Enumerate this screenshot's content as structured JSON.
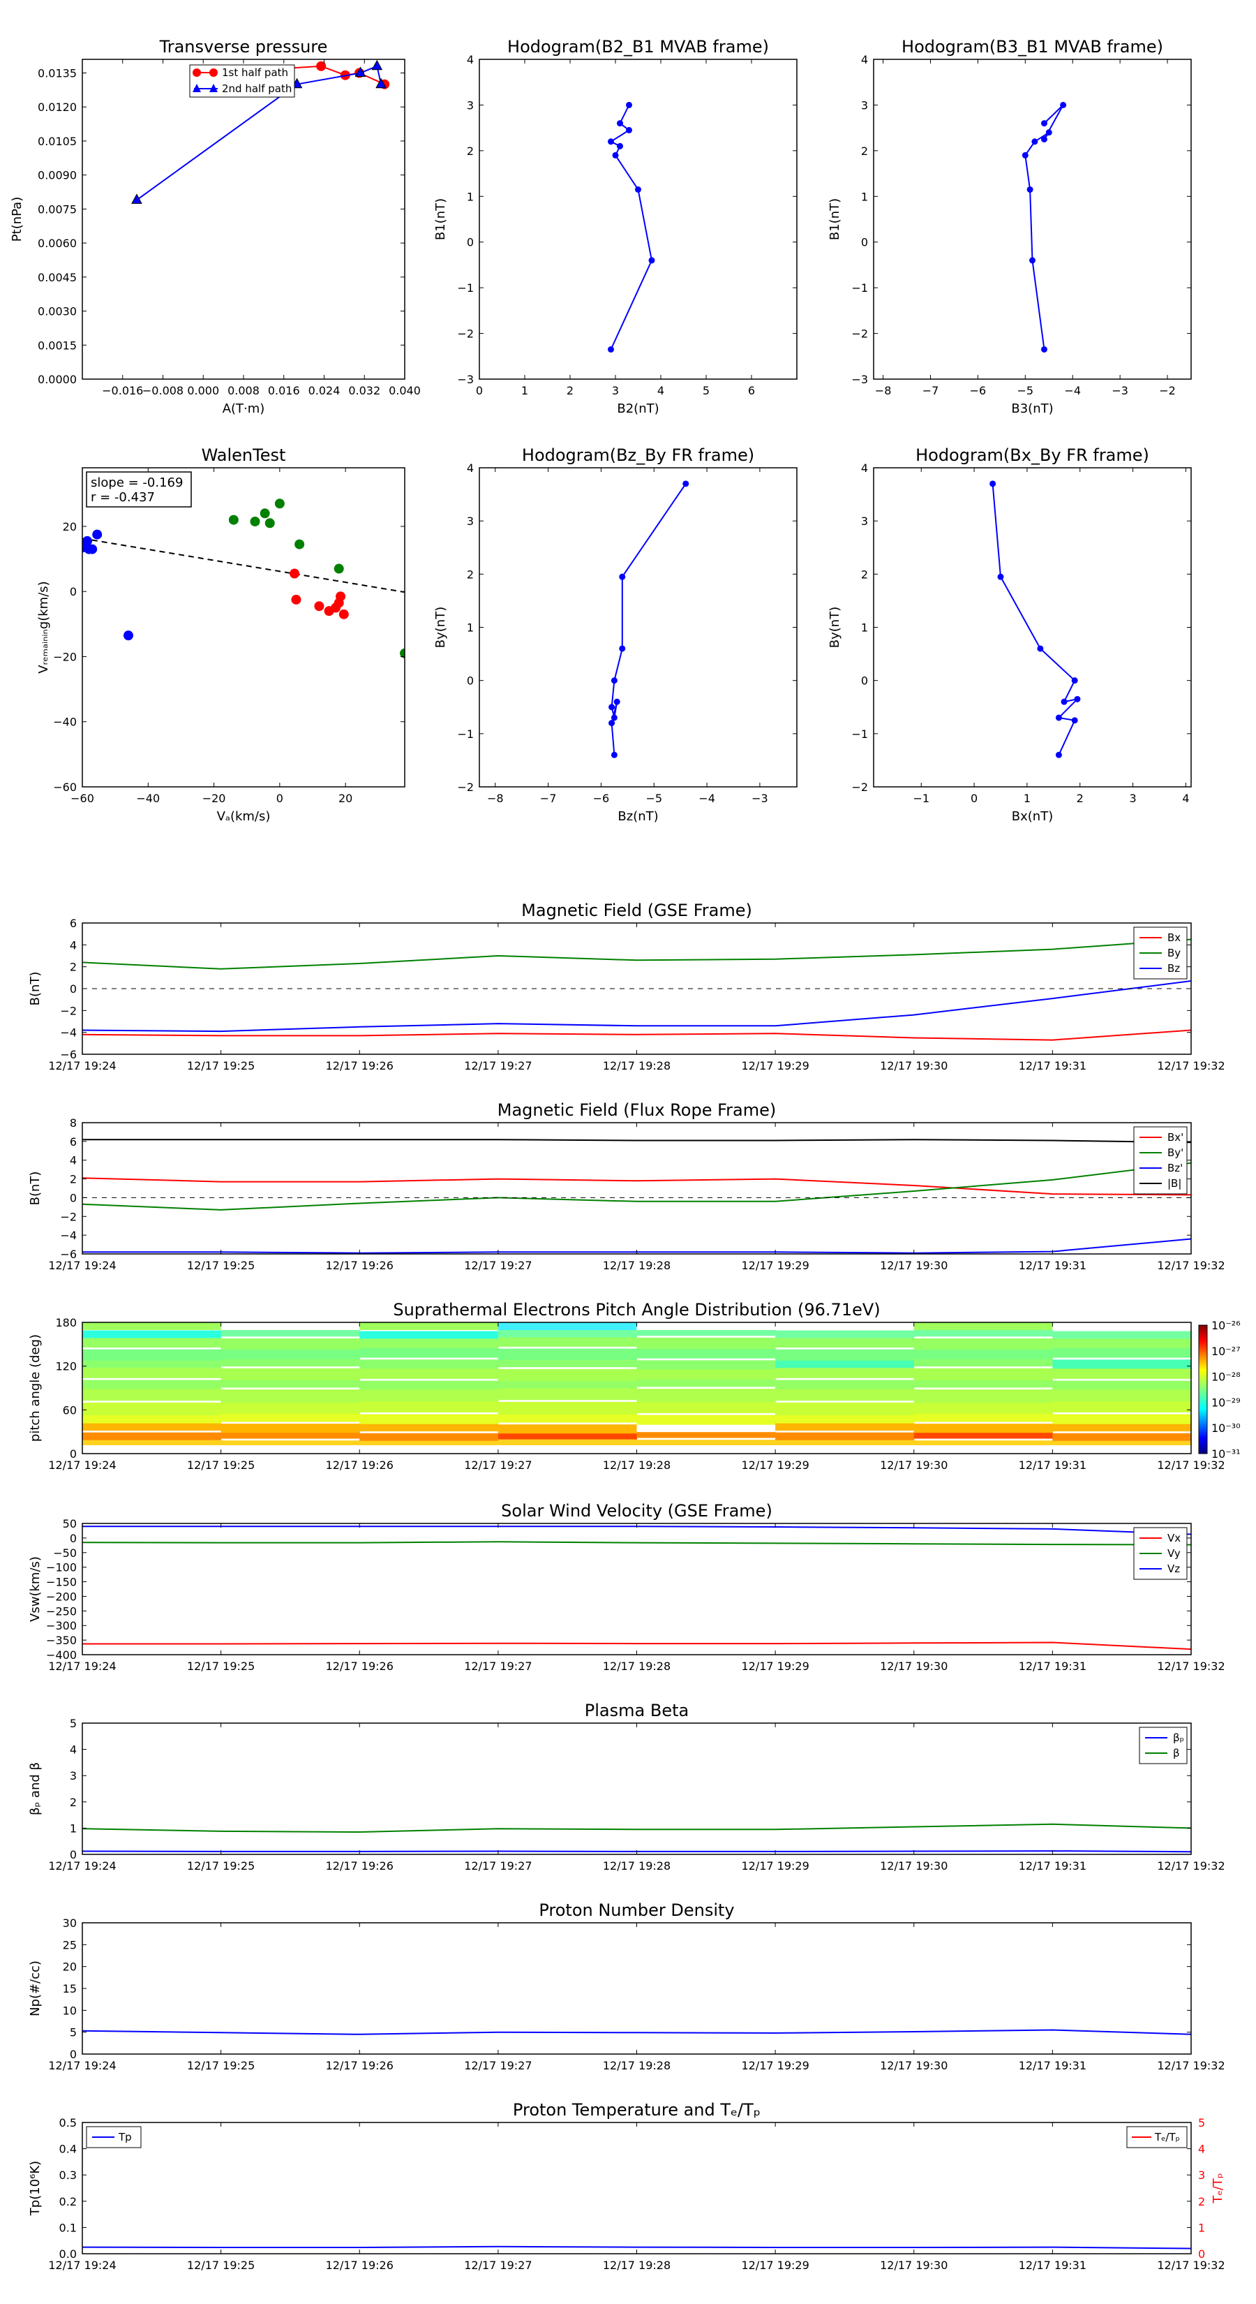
{
  "panels": {
    "transverse": {
      "title": "Transverse pressure",
      "xlabel": "A(T·m)",
      "ylabel": "Pt(nPa)",
      "xlim": [
        -0.024,
        0.04
      ],
      "ylim": [
        0,
        0.0141
      ],
      "xticks": [
        -0.016,
        -0.008,
        0.0,
        0.008,
        0.016,
        0.024,
        0.032,
        0.04
      ],
      "xticklabels": [
        "−0.016",
        "−0.008",
        "0.000",
        "0.008",
        "0.016",
        "0.024",
        "0.032",
        "0.040"
      ],
      "yticks": [
        0,
        0.0015,
        0.003,
        0.0045,
        0.006,
        0.0075,
        0.009,
        0.0105,
        0.012,
        0.0135
      ],
      "yticklabels": [
        "0.0000",
        "0.0015",
        "0.0030",
        "0.0045",
        "0.0060",
        "0.0075",
        "0.0090",
        "0.0105",
        "0.0120",
        "0.0135"
      ],
      "legend": [
        "1st half path",
        "2nd half path"
      ]
    },
    "hodo_b2b1": {
      "title": "Hodogram(B2_B1 MVAB frame)",
      "xlabel": "B2(nT)",
      "ylabel": "B1(nT)",
      "xlim": [
        0,
        7
      ],
      "ylim": [
        -3,
        4
      ],
      "xticks": [
        0,
        1,
        2,
        3,
        4,
        5,
        6
      ],
      "xticklabels": [
        "0",
        "1",
        "2",
        "3",
        "4",
        "5",
        "6"
      ],
      "yticks": [
        -3,
        -2,
        -1,
        0,
        1,
        2,
        3,
        4
      ],
      "yticklabels": [
        "−3",
        "−2",
        "−1",
        "0",
        "1",
        "2",
        "3",
        "4"
      ]
    },
    "hodo_b3b1": {
      "title": "Hodogram(B3_B1 MVAB frame)",
      "xlabel": "B3(nT)",
      "ylabel": "B1(nT)",
      "xlim": [
        -8.2,
        -1.5
      ],
      "ylim": [
        -3,
        4
      ],
      "xticks": [
        -8,
        -7,
        -6,
        -5,
        -4,
        -3,
        -2
      ],
      "xticklabels": [
        "−8",
        "−7",
        "−6",
        "−5",
        "−4",
        "−3",
        "−2"
      ],
      "yticks": [
        -3,
        -2,
        -1,
        0,
        1,
        2,
        3,
        4
      ],
      "yticklabels": [
        "−3",
        "−2",
        "−1",
        "0",
        "1",
        "2",
        "3",
        "4"
      ]
    },
    "walen": {
      "title": "WalenTest",
      "xlabel": "Vₐ(km/s)",
      "ylabel": "Vᵣₑₘₐᵢₙᵢₙg(km/s)",
      "xlim": [
        -60,
        38
      ],
      "ylim": [
        -60,
        38
      ],
      "xticks": [
        -60,
        -40,
        -20,
        0,
        20
      ],
      "xticklabels": [
        "−60",
        "−40",
        "−20",
        "0",
        "20"
      ],
      "yticks": [
        -60,
        -40,
        -20,
        0,
        20
      ],
      "yticklabels": [
        "−60",
        "−40",
        "−20",
        "0",
        "20"
      ],
      "box": [
        "slope = -0.169",
        "r = -0.437"
      ]
    },
    "hodo_bzby": {
      "title": "Hodogram(Bz_By FR frame)",
      "xlabel": "Bz(nT)",
      "ylabel": "By(nT)",
      "xlim": [
        -8.3,
        -2.3
      ],
      "ylim": [
        -2,
        4
      ],
      "xticks": [
        -8,
        -7,
        -6,
        -5,
        -4,
        -3
      ],
      "xticklabels": [
        "−8",
        "−7",
        "−6",
        "−5",
        "−4",
        "−3"
      ],
      "yticks": [
        -2,
        -1,
        0,
        1,
        2,
        3,
        4
      ],
      "yticklabels": [
        "−2",
        "−1",
        "0",
        "1",
        "2",
        "3",
        "4"
      ]
    },
    "hodo_bxby": {
      "title": "Hodogram(Bx_By FR frame)",
      "xlabel": "Bx(nT)",
      "ylabel": "By(nT)",
      "xlim": [
        -1.9,
        4.1
      ],
      "ylim": [
        -2,
        4
      ],
      "xticks": [
        -1,
        0,
        1,
        2,
        3,
        4
      ],
      "xticklabels": [
        "−1",
        "0",
        "1",
        "2",
        "3",
        "4"
      ],
      "yticks": [
        -2,
        -1,
        0,
        1,
        2,
        3,
        4
      ],
      "yticklabels": [
        "−2",
        "−1",
        "0",
        "1",
        "2",
        "3",
        "4"
      ]
    },
    "mag_gse": {
      "title": "Magnetic Field (GSE Frame)",
      "ylabel": "B(nT)",
      "ylim": [
        -6,
        6
      ],
      "yticks": [
        -6,
        -4,
        -2,
        0,
        2,
        4,
        6
      ],
      "yticklabels": [
        "−6",
        "−4",
        "−2",
        "0",
        "2",
        "4",
        "6"
      ],
      "legend": [
        "Bx",
        "By",
        "Bz"
      ]
    },
    "mag_fr": {
      "title": "Magnetic Field (Flux Rope Frame)",
      "ylabel": "B(nT)",
      "ylim": [
        -6,
        8
      ],
      "yticks": [
        -6,
        -4,
        -2,
        0,
        2,
        4,
        6,
        8
      ],
      "yticklabels": [
        "−6",
        "−4",
        "−2",
        "0",
        "2",
        "4",
        "6",
        "8"
      ],
      "legend": [
        "Bx'",
        "By'",
        "Bz'",
        "|B|"
      ]
    },
    "pitch": {
      "title": "Suprathermal Electrons Pitch Angle Distribution (96.71eV)",
      "ylabel": "pitch angle (deg)",
      "ylim": [
        0,
        180
      ],
      "yticks": [
        0,
        60,
        120,
        180
      ],
      "yticklabels": [
        "0",
        "60",
        "120",
        "180"
      ],
      "cbar_ticklabels": [
        "10⁻²⁶",
        "10⁻²⁷",
        "10⁻²⁸",
        "10⁻²⁹",
        "10⁻³⁰",
        "10⁻³¹"
      ]
    },
    "vsw": {
      "title": "Solar Wind Velocity (GSE Frame)",
      "ylabel": "Vsw(km/s)",
      "ylim": [
        -400,
        50
      ],
      "yticks": [
        -400,
        -350,
        -300,
        -250,
        -200,
        -150,
        -100,
        -50,
        0,
        50
      ],
      "yticklabels": [
        "−400",
        "−350",
        "−300",
        "−250",
        "−200",
        "−150",
        "−100",
        "−50",
        "0",
        "50"
      ],
      "legend": [
        "Vx",
        "Vy",
        "Vz"
      ]
    },
    "beta": {
      "title": "Plasma Beta",
      "ylabel": "βₚ and β",
      "ylim": [
        0,
        5
      ],
      "yticks": [
        0,
        1,
        2,
        3,
        4,
        5
      ],
      "yticklabels": [
        "0",
        "1",
        "2",
        "3",
        "4",
        "5"
      ],
      "legend": [
        "βₚ",
        "β"
      ]
    },
    "density": {
      "title": "Proton Number Density",
      "ylabel": "Np(#/cc)",
      "ylim": [
        0,
        30
      ],
      "yticks": [
        0,
        5,
        10,
        15,
        20,
        25,
        30
      ],
      "yticklabels": [
        "0",
        "5",
        "10",
        "15",
        "20",
        "25",
        "30"
      ]
    },
    "temp": {
      "title": "Proton Temperature and Tₑ/Tₚ",
      "ylabel": "Tp(10⁶K)",
      "ylim": [
        0,
        0.5
      ],
      "yticks": [
        0,
        0.1,
        0.2,
        0.3,
        0.4,
        0.5
      ],
      "yticklabels": [
        "0.0",
        "0.1",
        "0.2",
        "0.3",
        "0.4",
        "0.5"
      ],
      "ylabel2": "Tₑ/Tₚ",
      "ylim2": [
        0,
        5
      ],
      "yticks2": [
        0,
        1,
        2,
        3,
        4,
        5
      ],
      "yticklabels2": [
        "0",
        "1",
        "2",
        "3",
        "4",
        "5"
      ],
      "legend_left": "Tp",
      "legend_right": "Tₑ/Tₚ"
    }
  },
  "time_ticklabels": [
    "12/17 19:24",
    "12/17 19:25",
    "12/17 19:26",
    "12/17 19:27",
    "12/17 19:28",
    "12/17 19:29",
    "12/17 19:30",
    "12/17 19:31",
    "12/17 19:32"
  ],
  "colors": {
    "red": "#ff0000",
    "green": "#008000",
    "blue": "#0000ff",
    "black": "#000000"
  },
  "chart_data": [
    {
      "type": "line",
      "title": "Transverse pressure",
      "xlabel": "A(T·m)",
      "ylabel": "Pt(nPa)",
      "series": [
        {
          "name": "1st half path",
          "x": [
            -0.0001,
            0.0021,
            0.0234,
            0.0282,
            0.031,
            0.036
          ],
          "y": [
            0.0134,
            0.0135,
            0.0138,
            0.0134,
            0.0135,
            0.013
          ]
        },
        {
          "name": "2nd half path",
          "x": [
            -0.0132,
            0.0186,
            0.0312,
            0.0345,
            0.0353
          ],
          "y": [
            0.0079,
            0.013,
            0.0135,
            0.0138,
            0.013
          ]
        }
      ]
    },
    {
      "type": "line",
      "title": "Hodogram(B2_B1 MVAB frame)",
      "xlabel": "B2(nT)",
      "ylabel": "B1(nT)",
      "x": [
        2.9,
        3.8,
        3.5,
        3.0,
        3.1,
        2.9,
        3.3,
        3.1,
        3.3
      ],
      "y": [
        -2.35,
        -0.4,
        1.15,
        1.9,
        2.1,
        2.2,
        2.45,
        2.6,
        3.0
      ]
    },
    {
      "type": "line",
      "title": "Hodogram(B3_B1 MVAB frame)",
      "xlabel": "B3(nT)",
      "ylabel": "B1(nT)",
      "x": [
        -4.6,
        -4.85,
        -4.9,
        -5.0,
        -4.8,
        -4.5,
        -4.6,
        -4.2,
        -4.6
      ],
      "y": [
        -2.35,
        -0.4,
        1.15,
        1.9,
        2.2,
        2.4,
        2.25,
        3.0,
        2.6
      ]
    },
    {
      "type": "scatter",
      "title": "WalenTest",
      "xlabel": "Vₐ(km/s)",
      "ylabel": "Vᵣₑₘₐᵢₙᵢₙg(km/s)",
      "series": [
        {
          "color": "blue",
          "x": [
            -60,
            -58,
            -58.5,
            -57,
            -55.5,
            -46
          ],
          "y": [
            13.5,
            13,
            15.5,
            13,
            17.5,
            -13.5
          ]
        },
        {
          "color": "green",
          "x": [
            -14,
            -7.5,
            -4.5,
            -3,
            0,
            6,
            18,
            38
          ],
          "y": [
            22,
            21.5,
            24,
            21,
            27,
            14.5,
            7,
            -19
          ]
        },
        {
          "color": "red",
          "x": [
            4.5,
            5,
            12,
            15,
            17,
            18,
            18.5,
            19.5
          ],
          "y": [
            5.5,
            -2.5,
            -4.5,
            -6,
            -5,
            -3.5,
            -1.5,
            -7
          ]
        }
      ],
      "fit_line": {
        "x": [
          -60,
          38
        ],
        "y": [
          16.3,
          -0.2
        ]
      }
    },
    {
      "type": "line",
      "title": "Hodogram(Bz_By FR frame)",
      "xlabel": "Bz(nT)",
      "ylabel": "By(nT)",
      "x": [
        -5.75,
        -5.8,
        -5.7,
        -5.75,
        -5.8,
        -5.75,
        -5.6,
        -5.6,
        -4.4
      ],
      "y": [
        -1.4,
        -0.8,
        -0.4,
        -0.7,
        -0.5,
        0.0,
        0.6,
        1.95,
        3.7
      ]
    },
    {
      "type": "line",
      "title": "Hodogram(Bx_By FR frame)",
      "xlabel": "Bx(nT)",
      "ylabel": "By(nT)",
      "x": [
        1.6,
        1.9,
        1.6,
        1.95,
        1.7,
        1.9,
        1.25,
        0.5,
        0.35
      ],
      "y": [
        -1.4,
        -0.75,
        -0.7,
        -0.35,
        -0.4,
        0.0,
        0.6,
        1.95,
        3.7
      ]
    },
    {
      "type": "line",
      "title": "Magnetic Field (GSE Frame)",
      "ylabel": "B(nT)",
      "ylim": [
        -6,
        6
      ],
      "x": [
        0,
        1,
        2,
        3,
        4,
        5,
        6,
        7,
        8
      ],
      "series": [
        {
          "name": "Bx",
          "color": "red",
          "values": [
            -4.2,
            -4.3,
            -4.3,
            -4.1,
            -4.2,
            -4.1,
            -4.5,
            -4.7,
            -3.8
          ]
        },
        {
          "name": "By",
          "color": "green",
          "values": [
            2.4,
            1.8,
            2.3,
            3.0,
            2.6,
            2.7,
            3.1,
            3.6,
            4.5
          ]
        },
        {
          "name": "Bz",
          "color": "blue",
          "values": [
            -3.8,
            -3.9,
            -3.5,
            -3.2,
            -3.4,
            -3.4,
            -2.4,
            -0.9,
            0.7
          ]
        }
      ]
    },
    {
      "type": "line",
      "title": "Magnetic Field (Flux Rope Frame)",
      "ylabel": "B(nT)",
      "ylim": [
        -6,
        8
      ],
      "x": [
        0,
        1,
        2,
        3,
        4,
        5,
        6,
        7,
        8
      ],
      "series": [
        {
          "name": "Bx'",
          "color": "red",
          "values": [
            2.1,
            1.7,
            1.7,
            2.0,
            1.8,
            2.0,
            1.3,
            0.4,
            0.3
          ]
        },
        {
          "name": "By'",
          "color": "green",
          "values": [
            -0.7,
            -1.3,
            -0.6,
            0.0,
            -0.4,
            -0.4,
            0.7,
            1.9,
            3.7
          ]
        },
        {
          "name": "Bz'",
          "color": "blue",
          "values": [
            -5.8,
            -5.8,
            -5.9,
            -5.8,
            -5.8,
            -5.8,
            -5.9,
            -5.75,
            -4.4
          ]
        },
        {
          "name": "|B|",
          "color": "black",
          "values": [
            6.2,
            6.2,
            6.2,
            6.2,
            6.1,
            6.1,
            6.2,
            6.1,
            5.9
          ]
        }
      ]
    },
    {
      "type": "heatmap",
      "title": "Suprathermal Electrons Pitch Angle Distribution (96.71eV)",
      "ylabel": "pitch angle (deg)",
      "ylim": [
        0,
        180
      ],
      "x": [
        0,
        1,
        2,
        3,
        4,
        5,
        6,
        7,
        8
      ],
      "colorbar": {
        "min_exp": -31,
        "max_exp": -26
      }
    },
    {
      "type": "line",
      "title": "Solar Wind Velocity (GSE Frame)",
      "ylabel": "Vsw(km/s)",
      "ylim": [
        -400,
        50
      ],
      "x": [
        0,
        1,
        2,
        3,
        4,
        5,
        6,
        7,
        8
      ],
      "series": [
        {
          "name": "Vx",
          "color": "red",
          "values": [
            -363,
            -363,
            -362,
            -361,
            -362,
            -362,
            -360,
            -358,
            -381
          ]
        },
        {
          "name": "Vy",
          "color": "green",
          "values": [
            -15,
            -16,
            -16,
            -13,
            -16,
            -18,
            -20,
            -22,
            -23
          ]
        },
        {
          "name": "Vz",
          "color": "blue",
          "values": [
            40,
            40,
            40,
            40,
            40,
            38,
            35,
            31,
            13
          ]
        }
      ]
    },
    {
      "type": "line",
      "title": "Plasma Beta",
      "ylabel": "βₚ and β",
      "ylim": [
        0,
        5
      ],
      "x": [
        0,
        1,
        2,
        3,
        4,
        5,
        6,
        7,
        8
      ],
      "series": [
        {
          "name": "βₚ",
          "color": "blue",
          "values": [
            0.12,
            0.11,
            0.11,
            0.12,
            0.11,
            0.11,
            0.12,
            0.13,
            0.1
          ]
        },
        {
          "name": "β",
          "color": "green",
          "values": [
            0.98,
            0.88,
            0.85,
            0.98,
            0.95,
            0.95,
            1.05,
            1.15,
            1.0
          ]
        }
      ]
    },
    {
      "type": "line",
      "title": "Proton Number Density",
      "ylabel": "Np(#/cc)",
      "ylim": [
        0,
        30
      ],
      "x": [
        0,
        1,
        2,
        3,
        4,
        5,
        6,
        7,
        8
      ],
      "series": [
        {
          "color": "blue",
          "values": [
            5.3,
            4.9,
            4.5,
            5.0,
            4.9,
            4.8,
            5.1,
            5.5,
            4.5
          ]
        }
      ]
    },
    {
      "type": "line",
      "title": "Proton Temperature and Tₑ/Tₚ",
      "ylabel": "Tp(10⁶K)",
      "ylim": [
        0,
        0.5
      ],
      "x": [
        0,
        1,
        2,
        3,
        4,
        5,
        6,
        7,
        8
      ],
      "series": [
        {
          "name": "Tp",
          "color": "blue",
          "values": [
            0.025,
            0.024,
            0.024,
            0.027,
            0.025,
            0.024,
            0.024,
            0.025,
            0.02
          ]
        }
      ]
    }
  ]
}
